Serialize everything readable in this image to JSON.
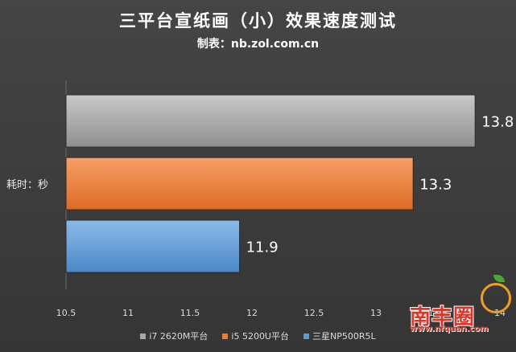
{
  "title": "三平台宣纸画（小）效果速度测试",
  "subtitle": "制表：nb.zol.com.cn",
  "chart_data": {
    "type": "bar",
    "orientation": "horizontal",
    "title": "三平台宣纸画（小）效果速度测试",
    "subtitle": "制表：nb.zol.com.cn",
    "ylabel": "耗时：秒",
    "xlabel": "",
    "xlim": [
      10.5,
      14
    ],
    "xticks": [
      "10.5",
      "11",
      "11.5",
      "12",
      "12.5",
      "13",
      "13.5",
      "14"
    ],
    "xtick_values": [
      10.5,
      11,
      11.5,
      12,
      12.5,
      13,
      13.5,
      14
    ],
    "grid": false,
    "legend_position": "bottom",
    "series": [
      {
        "name": "i7 2620M平台",
        "value": 13.8,
        "label": "13.8",
        "color": "#a6a6a6"
      },
      {
        "name": "i5 5200U平台",
        "value": 13.3,
        "label": "13.3",
        "color": "#ed7d31"
      },
      {
        "name": "三星NP500R5L",
        "value": 11.9,
        "label": "11.9",
        "color": "#5b9bd5"
      }
    ]
  },
  "watermark": {
    "text": "南丰圈",
    "url": "www.nfquan.com"
  }
}
